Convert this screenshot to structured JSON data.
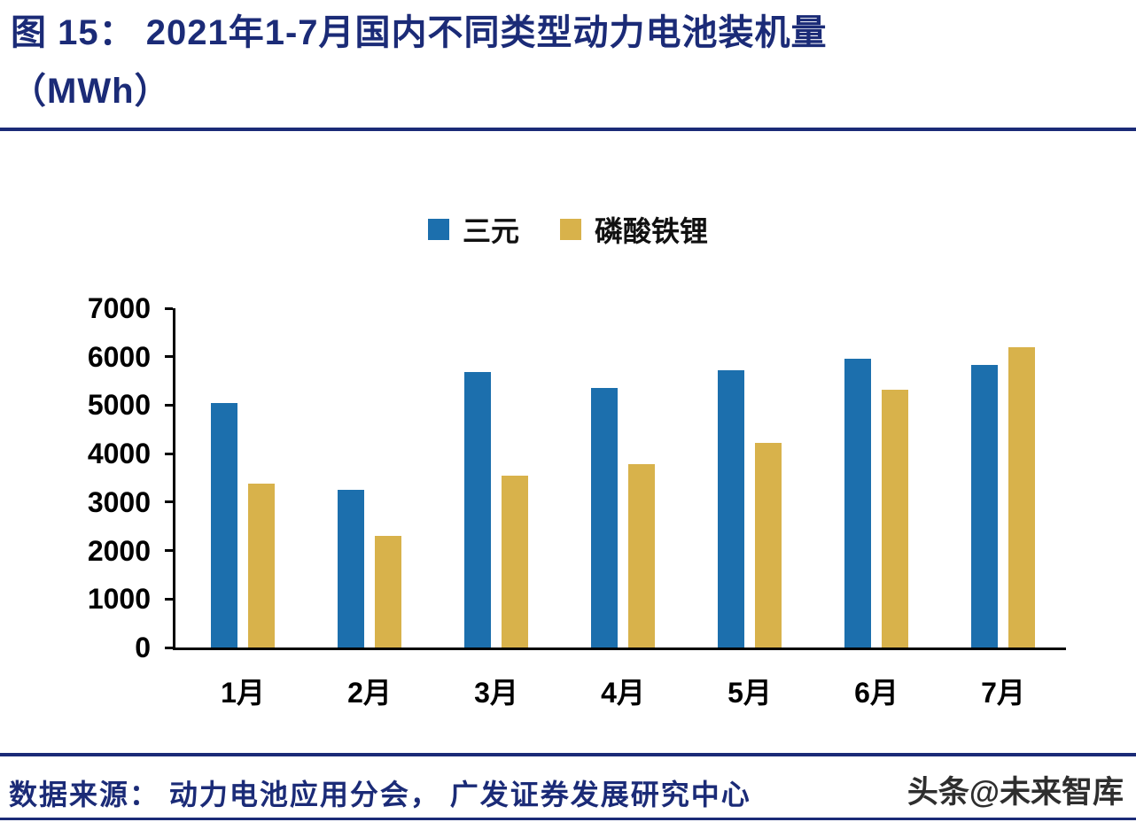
{
  "header": {
    "line1": "图  15：  2021年1-7月国内不同类型动力电池装机量",
    "line2": "（MWh）"
  },
  "footer": {
    "source": "数据来源：  动力电池应用分会，  广发证券发展研究中心",
    "watermark": "头条@未来智库"
  },
  "colors": {
    "navy": "#1b2b77",
    "ink": "#111111",
    "bar_blue": "#1c6fad",
    "bar_gold": "#d8b24b",
    "watermark_gray": "#2e2e2e"
  },
  "chart_data": {
    "type": "bar",
    "title": "2021年1-7月国内不同类型动力电池装机量（MWh）",
    "categories": [
      "1月",
      "2月",
      "3月",
      "4月",
      "5月",
      "6月",
      "7月"
    ],
    "series": [
      {
        "name": "三元",
        "color": "#1c6fad",
        "values": [
          5050,
          3250,
          5680,
          5350,
          5730,
          5950,
          5830
        ]
      },
      {
        "name": "磷酸铁锂",
        "color": "#d8b24b",
        "values": [
          3390,
          2310,
          3550,
          3780,
          4220,
          5320,
          6200
        ]
      }
    ],
    "xlabel": "",
    "ylabel": "",
    "ylim": [
      0,
      7000
    ],
    "yticks": [
      0,
      1000,
      2000,
      3000,
      4000,
      5000,
      6000,
      7000
    ],
    "grid": false,
    "legend_position": "top-center"
  }
}
